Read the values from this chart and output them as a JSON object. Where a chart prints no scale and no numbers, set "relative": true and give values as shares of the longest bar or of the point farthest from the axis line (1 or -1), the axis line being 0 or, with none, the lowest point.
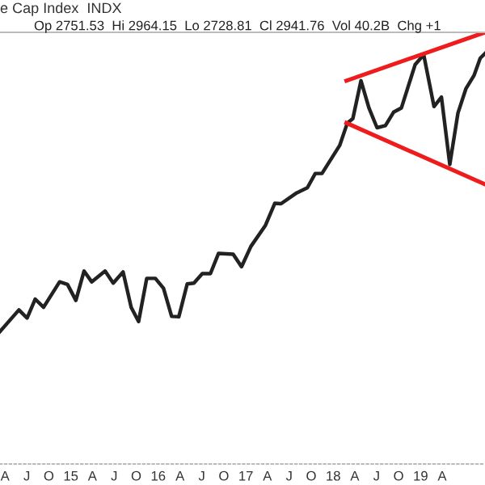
{
  "chart_data": {
    "type": "line",
    "title": "e Cap Index  INDX",
    "subtitle": "Op 2751.53  Hi 2964.15  Lo 2728.81  Cl 2941.76  Vol 40.2B  Chg +1",
    "relative": true,
    "xlim": [
      "2014-03-11",
      "2019-09-27"
    ],
    "xticks": [
      {
        "value": "2014-04-01",
        "label": "A"
      },
      {
        "value": "2014-07-01",
        "label": "J"
      },
      {
        "value": "2014-10-01",
        "label": "O"
      },
      {
        "value": "2015-01-01",
        "label": "15"
      },
      {
        "value": "2015-04-01",
        "label": "A"
      },
      {
        "value": "2015-07-01",
        "label": "J"
      },
      {
        "value": "2015-10-01",
        "label": "O"
      },
      {
        "value": "2016-01-01",
        "label": "16"
      },
      {
        "value": "2016-04-01",
        "label": "A"
      },
      {
        "value": "2016-07-01",
        "label": "J"
      },
      {
        "value": "2016-10-01",
        "label": "O"
      },
      {
        "value": "2017-01-01",
        "label": "17"
      },
      {
        "value": "2017-04-01",
        "label": "A"
      },
      {
        "value": "2017-07-01",
        "label": "J"
      },
      {
        "value": "2017-10-01",
        "label": "O"
      },
      {
        "value": "2018-01-01",
        "label": "18"
      },
      {
        "value": "2018-04-01",
        "label": "A"
      },
      {
        "value": "2018-07-01",
        "label": "J"
      },
      {
        "value": "2018-10-01",
        "label": "O"
      },
      {
        "value": "2019-01-01",
        "label": "19"
      },
      {
        "value": "2019-04-01",
        "label": "A"
      }
    ],
    "tick_labels": "x",
    "grid": false,
    "legend": false,
    "marker": "none",
    "line_style": "solid",
    "series": [
      {
        "color": "#222222",
        "x": [
          "2014-03-11",
          "2014-05-29",
          "2014-07-02",
          "2014-08-05",
          "2014-09-09",
          "2014-11-15",
          "2014-12-18",
          "2015-01-22",
          "2015-02-25",
          "2015-03-29",
          "2015-05-24",
          "2015-06-27",
          "2015-08-07",
          "2015-09-10",
          "2015-10-11",
          "2015-11-14",
          "2015-12-20",
          "2016-01-23",
          "2016-02-26",
          "2016-03-27",
          "2016-05-01",
          "2016-05-29",
          "2016-07-03",
          "2016-08-06",
          "2016-09-09",
          "2016-11-09",
          "2016-12-14",
          "2017-01-22",
          "2017-03-24",
          "2017-05-02",
          "2017-05-28",
          "2017-08-01",
          "2017-09-15",
          "2017-10-18",
          "2017-11-15",
          "2018-01-28",
          "2018-03-01",
          "2018-03-24",
          "2018-04-27",
          "2018-05-30",
          "2018-07-03",
          "2018-08-07",
          "2018-09-10",
          "2018-10-13",
          "2018-12-09",
          "2019-01-14",
          "2019-02-26",
          "2019-03-29",
          "2019-05-03",
          "2019-06-06",
          "2019-07-09",
          "2019-08-12",
          "2019-09-07",
          "2019-09-27"
        ],
        "values": [
          0.307,
          0.357,
          0.338,
          0.382,
          0.363,
          0.422,
          0.416,
          0.379,
          0.447,
          0.422,
          0.447,
          0.419,
          0.445,
          0.363,
          0.33,
          0.43,
          0.43,
          0.407,
          0.342,
          0.341,
          0.417,
          0.419,
          0.441,
          0.441,
          0.488,
          0.486,
          0.457,
          0.504,
          0.553,
          0.604,
          0.603,
          0.628,
          0.64,
          0.673,
          0.673,
          0.738,
          0.79,
          0.8,
          0.888,
          0.825,
          0.779,
          0.784,
          0.815,
          0.825,
          0.925,
          0.948,
          0.828,
          0.85,
          0.694,
          0.813,
          0.869,
          0.9,
          0.94,
          0.951
        ]
      },
      {
        "color": "#ee1c1c",
        "x": [
          "2018-02-25",
          "2019-09-27"
        ],
        "values": [
          0.888,
          1
        ]
      },
      {
        "color": "#ee1c1c",
        "x": [
          "2018-02-25",
          "2019-09-27"
        ],
        "values": [
          0.79,
          0.648
        ]
      }
    ]
  }
}
